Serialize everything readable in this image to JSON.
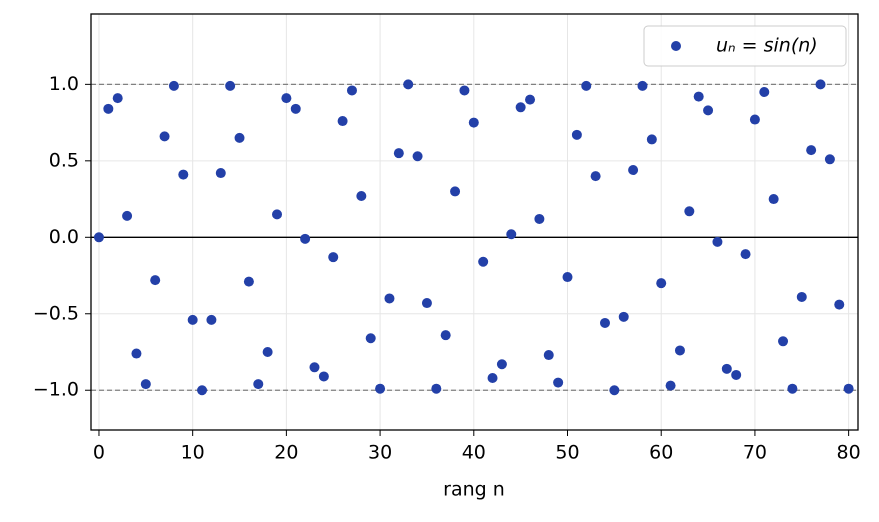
{
  "chart_data": {
    "type": "scatter",
    "xlabel": "rang n",
    "legend_position": "upper right",
    "grid": true,
    "xlim": [
      -0.85,
      81
    ],
    "ylim": [
      -1.26,
      1.46
    ],
    "xticks": [
      0,
      10,
      20,
      30,
      40,
      50,
      60,
      70,
      80
    ],
    "yticks": [
      {
        "value": -1.0,
        "label": "−1.0"
      },
      {
        "value": -0.5,
        "label": "−0.5"
      },
      {
        "value": 0.0,
        "label": "0.0"
      },
      {
        "value": 0.5,
        "label": "0.5"
      },
      {
        "value": 1.0,
        "label": "1.0"
      }
    ],
    "hlines": [
      {
        "y": 1,
        "style": "dashed"
      },
      {
        "y": -1,
        "style": "dashed"
      },
      {
        "y": 0,
        "style": "solid"
      }
    ],
    "series": [
      {
        "name": "uₙ = sin(n)",
        "color": "#2340a8",
        "x": [
          0,
          1,
          2,
          3,
          4,
          5,
          6,
          7,
          8,
          9,
          10,
          11,
          12,
          13,
          14,
          15,
          16,
          17,
          18,
          19,
          20,
          21,
          22,
          23,
          24,
          25,
          26,
          27,
          28,
          29,
          30,
          31,
          32,
          33,
          34,
          35,
          36,
          37,
          38,
          39,
          40,
          41,
          42,
          43,
          44,
          45,
          46,
          47,
          48,
          49,
          50,
          51,
          52,
          53,
          54,
          55,
          56,
          57,
          58,
          59,
          60,
          61,
          62,
          63,
          64,
          65,
          66,
          67,
          68,
          69,
          70,
          71,
          72,
          73,
          74,
          75,
          76,
          77,
          78,
          79,
          80
        ],
        "values": [
          0,
          0.84,
          0.91,
          0.14,
          -0.76,
          -0.96,
          -0.28,
          0.66,
          0.99,
          0.41,
          -0.54,
          -1.0,
          -0.54,
          0.42,
          0.99,
          0.65,
          -0.29,
          -0.96,
          -0.75,
          0.15,
          0.91,
          0.84,
          -0.01,
          -0.85,
          -0.91,
          -0.13,
          0.76,
          0.96,
          0.27,
          -0.66,
          -0.99,
          -0.4,
          0.55,
          1.0,
          0.53,
          -0.43,
          -0.99,
          -0.64,
          0.3,
          0.96,
          0.75,
          -0.16,
          -0.92,
          -0.83,
          0.02,
          0.85,
          0.9,
          0.12,
          -0.77,
          -0.95,
          -0.26,
          0.67,
          0.99,
          0.4,
          -0.56,
          -1.0,
          -0.52,
          0.44,
          0.99,
          0.64,
          -0.3,
          -0.97,
          -0.74,
          0.17,
          0.92,
          0.83,
          -0.03,
          -0.86,
          -0.9,
          -0.11,
          0.77,
          0.95,
          0.25,
          -0.68,
          -0.99,
          -0.39,
          0.57,
          1.0,
          0.51,
          -0.44,
          -0.99
        ]
      }
    ]
  }
}
